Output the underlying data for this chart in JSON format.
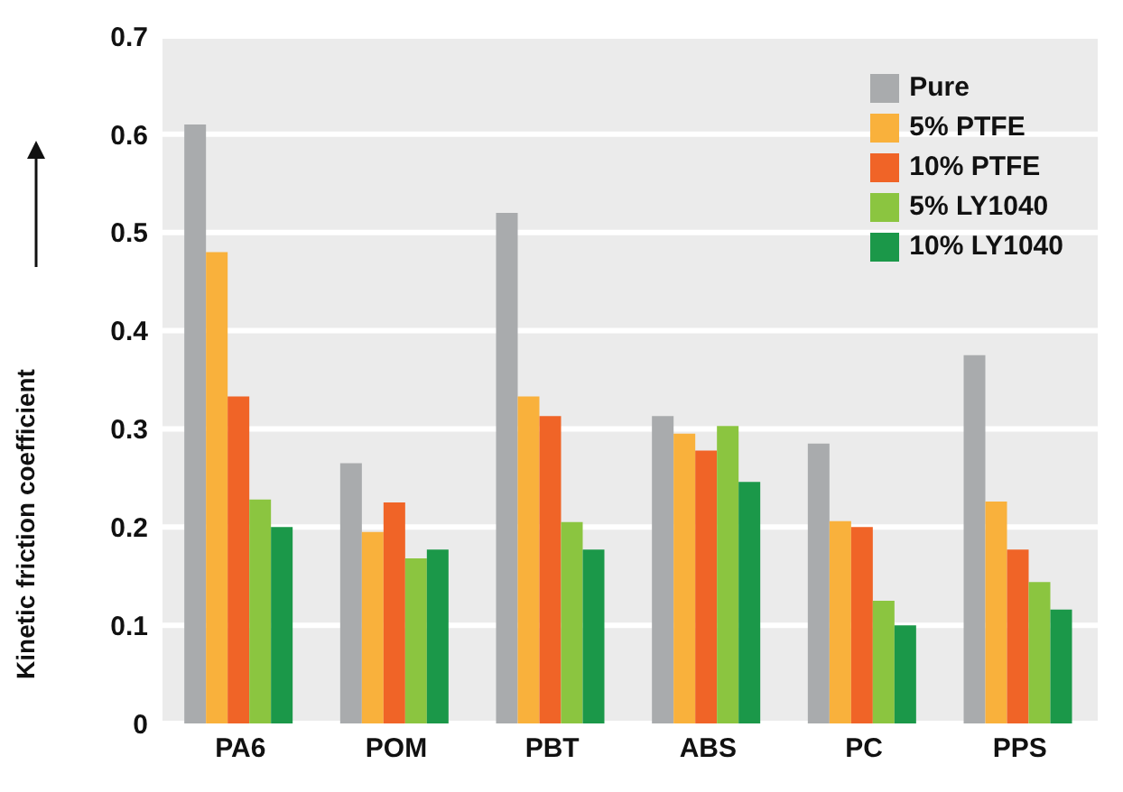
{
  "chart_data": {
    "type": "bar",
    "ylabel": "Kinetic friction coefficient",
    "categories": [
      "PA6",
      "POM",
      "PBT",
      "ABS",
      "PC",
      "PPS"
    ],
    "series": [
      {
        "name": "Pure",
        "color": "#a9abad",
        "values": [
          0.61,
          0.265,
          0.52,
          0.313,
          0.285,
          0.375
        ]
      },
      {
        "name": "5% PTFE",
        "color": "#f9b13c",
        "values": [
          0.48,
          0.195,
          0.333,
          0.295,
          0.206,
          0.226
        ]
      },
      {
        "name": "10% PTFE",
        "color": "#f06427",
        "values": [
          0.333,
          0.225,
          0.313,
          0.278,
          0.2,
          0.177
        ]
      },
      {
        "name": "5% LY1040",
        "color": "#8bc540",
        "values": [
          0.228,
          0.168,
          0.205,
          0.303,
          0.125,
          0.144
        ]
      },
      {
        "name": "10% LY1040",
        "color": "#1b9849",
        "values": [
          0.2,
          0.177,
          0.177,
          0.246,
          0.1,
          0.116
        ]
      }
    ],
    "ylim": [
      0,
      0.7
    ],
    "yticks": [
      0,
      0.1,
      0.2,
      0.3,
      0.4,
      0.5,
      0.6,
      0.7
    ],
    "grid": "y",
    "legend": "top right"
  }
}
